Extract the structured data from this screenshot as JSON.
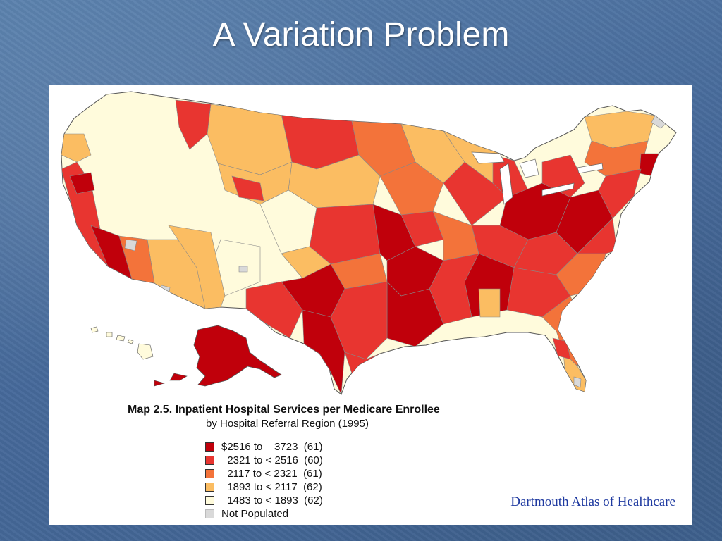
{
  "slide": {
    "title": "A Variation Problem",
    "background_color": "#4a6f9a"
  },
  "map": {
    "caption_title": "Map 2.5.  Inpatient Hospital Services per Medicare Enrollee",
    "caption_subtitle": "by Hospital Referral Region (1995)",
    "legend": [
      {
        "label": "$2516 to    3723  (61)",
        "color": "#c0000b"
      },
      {
        "label": "  2321 to < 2516  (60)",
        "color": "#e83530"
      },
      {
        "label": "  2117 to < 2321  (61)",
        "color": "#f3733a"
      },
      {
        "label": "  1893 to < 2117  (62)",
        "color": "#fbbd62"
      },
      {
        "label": "  1483 to < 1893  (62)",
        "color": "#fffbdc"
      },
      {
        "label": "Not Populated",
        "color": "#d9d9d9"
      }
    ],
    "credit": "Dartmouth Atlas of Healthcare"
  }
}
